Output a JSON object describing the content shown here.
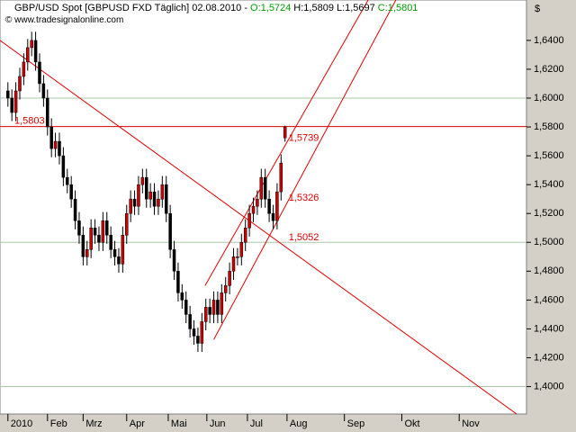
{
  "chart_data": {
    "type": "candlestick",
    "title": "GBP/USD Spot [GBPUSD FXD  Täglich] 02.08.2010 -",
    "ohlc_text": [
      {
        "text": "O:1,5724",
        "color": "#00a000"
      },
      {
        "text": "H:1,5809",
        "color": "#000000"
      },
      {
        "text": "L:1,5697",
        "color": "#000000"
      },
      {
        "text": "C:1,5801",
        "color": "#00a000"
      }
    ],
    "subtitle": "© www.tradesignalonline.com",
    "y_axis_label": "$",
    "up_color": "#cc0000",
    "down_color": "#000000",
    "xlim": [
      -4,
      262
    ],
    "ylim": [
      1.381,
      1.668
    ],
    "xticks": [
      {
        "value": 0,
        "label": "2010"
      },
      {
        "value": 20,
        "label": "Feb"
      },
      {
        "value": 38,
        "label": "Mrz"
      },
      {
        "value": 60,
        "label": "Apr"
      },
      {
        "value": 81,
        "label": "Mai"
      },
      {
        "value": 100.5,
        "label": "Jun"
      },
      {
        "value": 121,
        "label": "Jul"
      },
      {
        "value": 141,
        "label": "Aug"
      },
      {
        "value": 170,
        "label": "Sep"
      },
      {
        "value": 199,
        "label": "Okt"
      },
      {
        "value": 228,
        "label": "Nov"
      }
    ],
    "yticks": [
      {
        "value": 1.4,
        "label": "1,4000"
      },
      {
        "value": 1.42,
        "label": "1,4200"
      },
      {
        "value": 1.44,
        "label": "1,4400"
      },
      {
        "value": 1.46,
        "label": "1,4600"
      },
      {
        "value": 1.48,
        "label": "1,4800"
      },
      {
        "value": 1.5,
        "label": "1,5000"
      },
      {
        "value": 1.52,
        "label": "1,5200"
      },
      {
        "value": 1.54,
        "label": "1,5400"
      },
      {
        "value": 1.56,
        "label": "1,5600"
      },
      {
        "value": 1.58,
        "label": "1,5800"
      },
      {
        "value": 1.6,
        "label": "1,6000"
      },
      {
        "value": 1.62,
        "label": "1,6200"
      },
      {
        "value": 1.64,
        "label": "1,6400"
      }
    ],
    "grid_lines": [
      1.4,
      1.5,
      1.6
    ],
    "x": [
      0,
      2,
      4,
      6,
      8,
      10,
      12,
      14,
      16,
      18,
      20,
      22,
      24,
      26,
      28,
      30,
      32,
      34,
      36,
      38,
      40,
      42,
      44,
      46,
      48,
      50,
      52,
      54,
      56,
      58,
      60,
      62,
      64,
      66,
      68,
      70,
      72,
      74,
      76,
      78,
      80,
      82,
      84,
      86,
      88,
      90,
      92,
      94,
      96,
      98,
      100,
      102,
      104,
      106,
      108,
      110,
      112,
      114,
      116,
      118,
      120,
      122,
      124,
      126,
      128,
      130,
      132,
      134,
      136,
      138,
      140
    ],
    "open": [
      1.605,
      1.6,
      1.59,
      1.605,
      1.615,
      1.625,
      1.635,
      1.64,
      1.625,
      1.61,
      1.6,
      1.58,
      1.565,
      1.57,
      1.56,
      1.545,
      1.54,
      1.53,
      1.515,
      1.505,
      1.49,
      1.495,
      1.51,
      1.505,
      1.5,
      1.515,
      1.505,
      1.495,
      1.49,
      1.485,
      1.505,
      1.52,
      1.53,
      1.525,
      1.54,
      1.545,
      1.53,
      1.535,
      1.525,
      1.53,
      1.54,
      1.52,
      1.495,
      1.48,
      1.465,
      1.46,
      1.45,
      1.44,
      1.435,
      1.43,
      1.445,
      1.455,
      1.45,
      1.46,
      1.45,
      1.465,
      1.47,
      1.48,
      1.49,
      1.49,
      1.5,
      1.51,
      1.52,
      1.525,
      1.53,
      1.545,
      1.53,
      1.52,
      1.515,
      1.535,
      1.5724
    ],
    "high": [
      1.611,
      1.606,
      1.611,
      1.621,
      1.631,
      1.641,
      1.646,
      1.646,
      1.631,
      1.616,
      1.606,
      1.586,
      1.576,
      1.576,
      1.566,
      1.551,
      1.546,
      1.536,
      1.521,
      1.511,
      1.501,
      1.516,
      1.516,
      1.511,
      1.521,
      1.521,
      1.511,
      1.501,
      1.496,
      1.511,
      1.526,
      1.536,
      1.536,
      1.546,
      1.551,
      1.551,
      1.541,
      1.541,
      1.536,
      1.546,
      1.546,
      1.526,
      1.501,
      1.486,
      1.471,
      1.466,
      1.456,
      1.446,
      1.441,
      1.451,
      1.461,
      1.461,
      1.466,
      1.466,
      1.471,
      1.476,
      1.486,
      1.496,
      1.496,
      1.506,
      1.516,
      1.526,
      1.531,
      1.536,
      1.551,
      1.551,
      1.536,
      1.526,
      1.541,
      1.561,
      1.5809
    ],
    "low": [
      1.594,
      1.584,
      1.584,
      1.599,
      1.609,
      1.619,
      1.629,
      1.619,
      1.604,
      1.594,
      1.574,
      1.559,
      1.559,
      1.554,
      1.539,
      1.534,
      1.524,
      1.509,
      1.499,
      1.484,
      1.484,
      1.489,
      1.499,
      1.494,
      1.494,
      1.499,
      1.489,
      1.484,
      1.479,
      1.479,
      1.499,
      1.514,
      1.519,
      1.519,
      1.534,
      1.524,
      1.524,
      1.519,
      1.519,
      1.524,
      1.514,
      1.489,
      1.474,
      1.459,
      1.454,
      1.444,
      1.434,
      1.429,
      1.424,
      1.424,
      1.439,
      1.444,
      1.444,
      1.444,
      1.444,
      1.459,
      1.464,
      1.474,
      1.484,
      1.484,
      1.494,
      1.504,
      1.514,
      1.519,
      1.524,
      1.524,
      1.514,
      1.509,
      1.509,
      1.529,
      1.5697
    ],
    "close": [
      1.6,
      1.59,
      1.605,
      1.615,
      1.625,
      1.635,
      1.64,
      1.625,
      1.61,
      1.6,
      1.58,
      1.565,
      1.57,
      1.56,
      1.545,
      1.54,
      1.53,
      1.515,
      1.505,
      1.49,
      1.495,
      1.51,
      1.505,
      1.5,
      1.515,
      1.505,
      1.495,
      1.49,
      1.485,
      1.505,
      1.52,
      1.53,
      1.525,
      1.54,
      1.545,
      1.53,
      1.535,
      1.525,
      1.53,
      1.54,
      1.52,
      1.495,
      1.48,
      1.465,
      1.46,
      1.45,
      1.44,
      1.435,
      1.43,
      1.445,
      1.455,
      1.45,
      1.46,
      1.45,
      1.465,
      1.47,
      1.48,
      1.49,
      1.49,
      1.5,
      1.51,
      1.52,
      1.525,
      1.53,
      1.545,
      1.53,
      1.52,
      1.515,
      1.535,
      1.555,
      1.5801
    ],
    "line_color": "#e00000",
    "hlines": [
      {
        "value": 1.5803,
        "label": "1,5803"
      }
    ],
    "trendlines": [
      {
        "x": [
          -4,
          257
        ],
        "y": [
          1.64,
          1.381
        ]
      },
      {
        "x": [
          99.6,
          182
        ],
        "y": [
          1.47,
          1.668
        ]
      },
      {
        "x": [
          104,
          196
        ],
        "y": [
          1.4326,
          1.668
        ]
      }
    ],
    "annotations": [
      {
        "value": 1.5739,
        "label": "1,5739"
      },
      {
        "value": 1.5326,
        "label": "1,5326"
      },
      {
        "value": 1.5052,
        "label": "1,5052"
      }
    ]
  }
}
